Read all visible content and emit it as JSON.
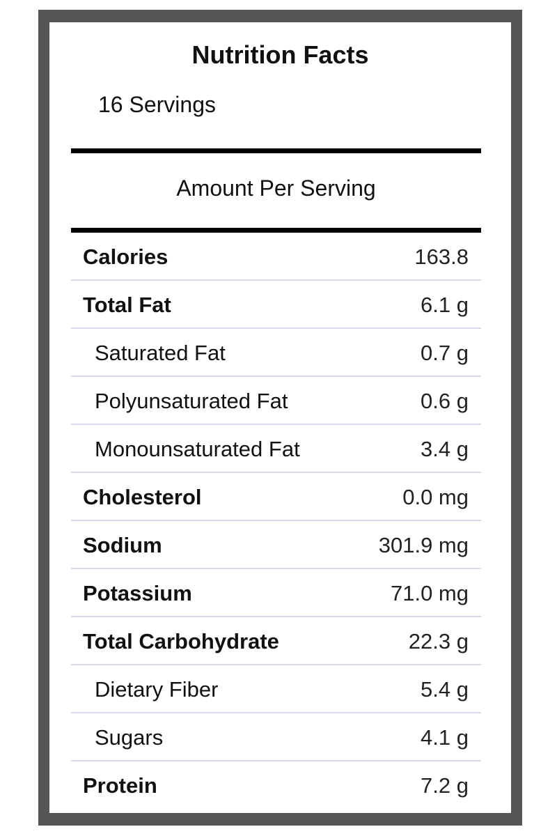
{
  "label": {
    "title": "Nutrition Facts",
    "servings": "16 Servings",
    "amount_per_serving": "Amount Per Serving"
  },
  "nutrients": [
    {
      "name": "Calories",
      "value": "163.8",
      "level": "main"
    },
    {
      "name": "Total Fat",
      "value": "6.1 g",
      "level": "main"
    },
    {
      "name": "Saturated Fat",
      "value": "0.7 g",
      "level": "sub"
    },
    {
      "name": "Polyunsaturated Fat",
      "value": "0.6 g",
      "level": "sub"
    },
    {
      "name": "Monounsaturated Fat",
      "value": "3.4 g",
      "level": "sub"
    },
    {
      "name": "Cholesterol",
      "value": "0.0 mg",
      "level": "main"
    },
    {
      "name": "Sodium",
      "value": "301.9 mg",
      "level": "main"
    },
    {
      "name": "Potassium",
      "value": "71.0 mg",
      "level": "main"
    },
    {
      "name": "Total Carbohydrate",
      "value": "22.3 g",
      "level": "main"
    },
    {
      "name": "Dietary Fiber",
      "value": "5.4 g",
      "level": "sub"
    },
    {
      "name": "Sugars",
      "value": "4.1 g",
      "level": "sub"
    },
    {
      "name": "Protein",
      "value": "7.2 g",
      "level": "main"
    }
  ],
  "colors": {
    "frame": "#555555",
    "row_divider": "#d6d8ee",
    "thick_rule": "#000000"
  }
}
